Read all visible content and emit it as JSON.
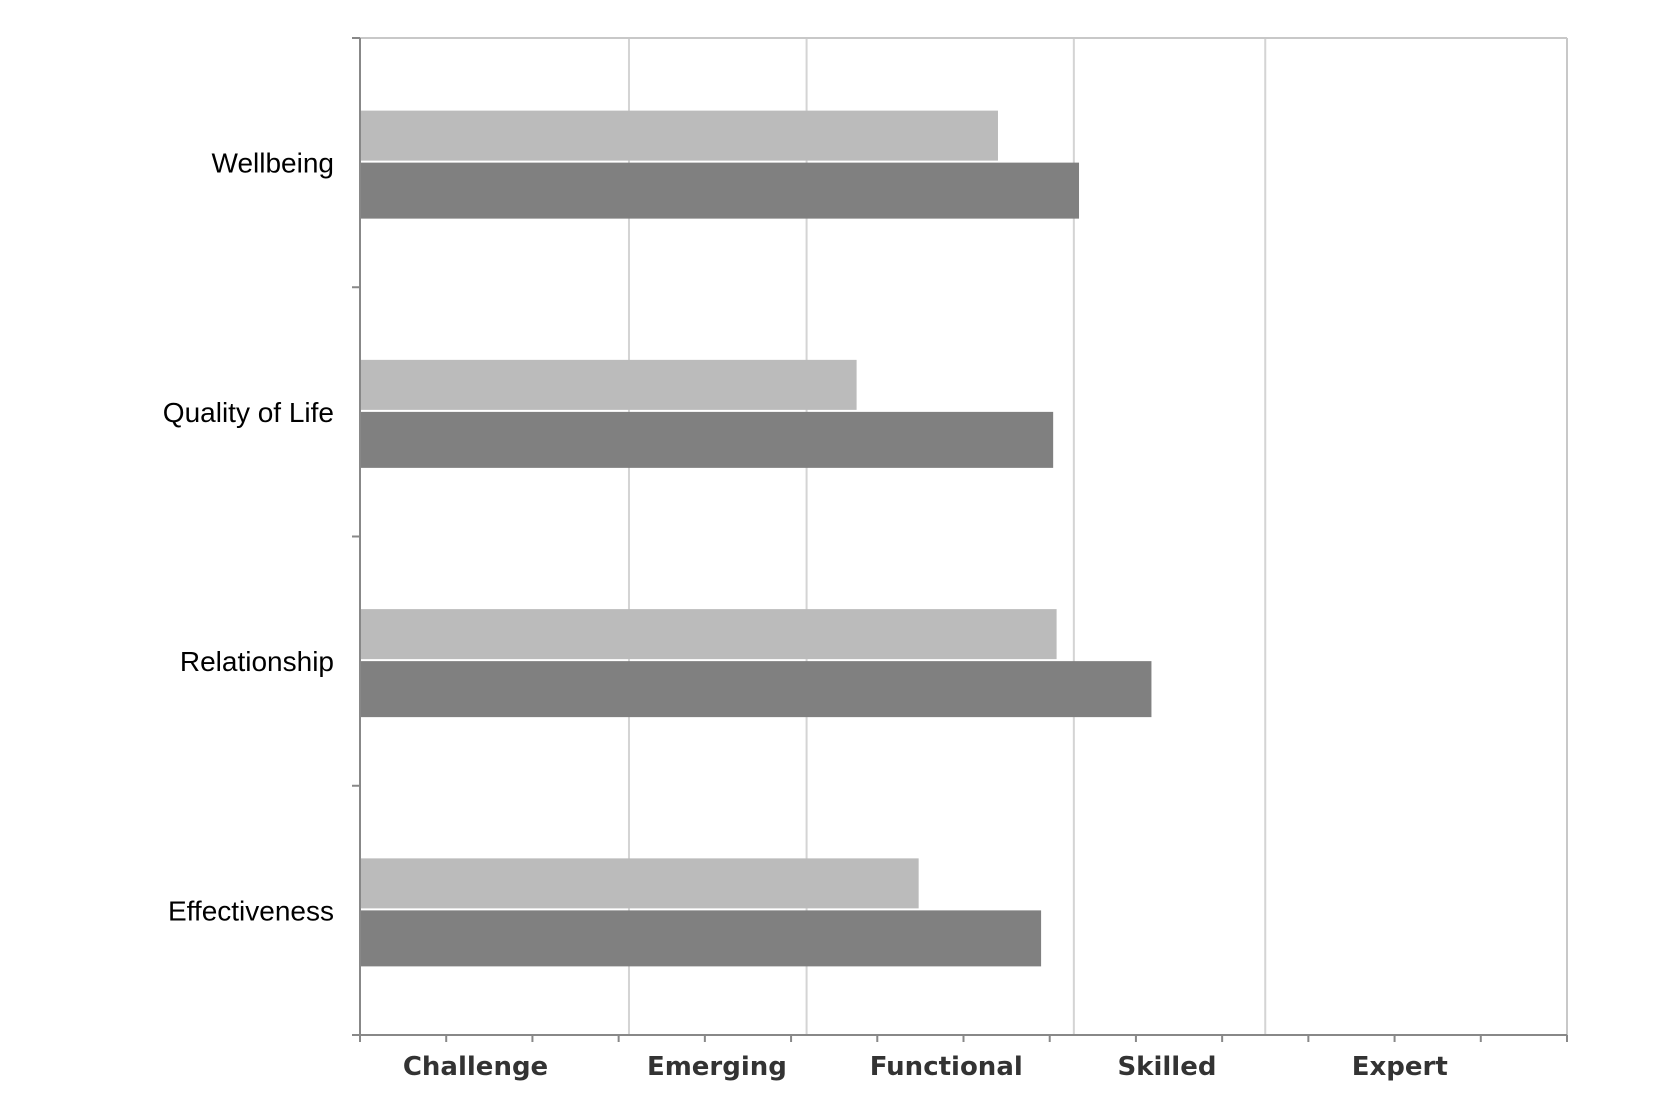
{
  "chart_data": {
    "type": "bar",
    "orientation": "horizontal",
    "title": "",
    "xlabel": "",
    "ylabel": "",
    "categories": [
      "Wellbeing",
      "Quality of Life",
      "Relationship",
      "Effectiveness"
    ],
    "x_tick_labels": [
      "Challenge",
      "Emerging",
      "Functional",
      "Skilled",
      "Expert"
    ],
    "xlim": [
      0,
      7
    ],
    "series": [
      {
        "values": [
          3.7,
          2.88,
          4.04,
          3.24
        ],
        "color": "#bbbbbb"
      },
      {
        "values": [
          4.17,
          4.02,
          4.59,
          3.95
        ],
        "color": "#808080"
      }
    ],
    "gridlines_x": [
      1.56,
      2.59,
      4.14,
      5.25
    ],
    "legend": "none"
  }
}
